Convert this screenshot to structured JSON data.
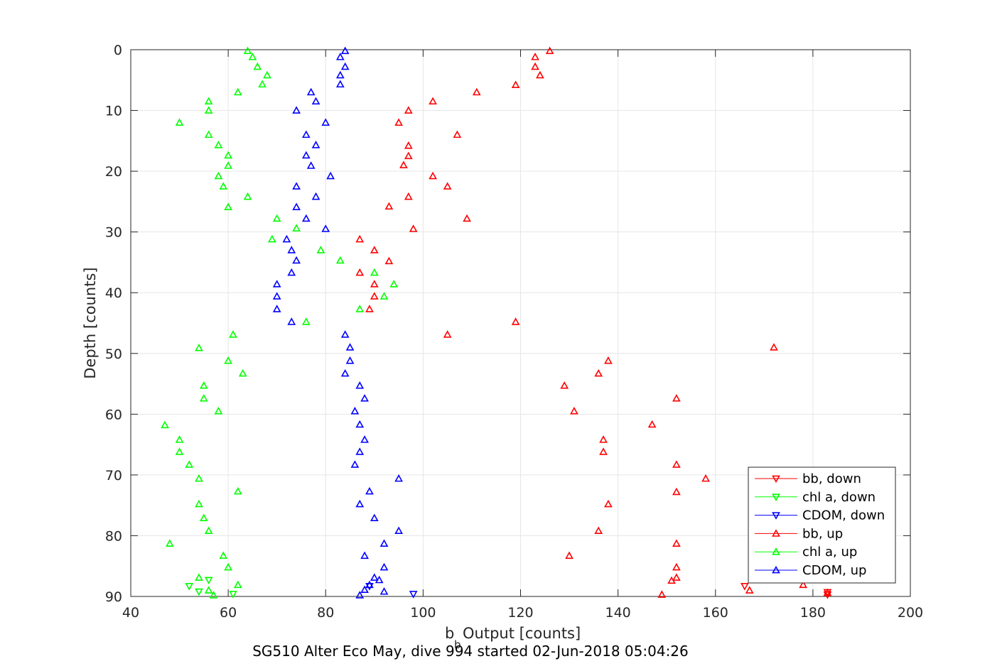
{
  "chart_data": {
    "type": "scatter",
    "title": "SG510 Alter Eco May, dive 994 started 02-Jun-2018 05:04:26",
    "xlabel_main": "b",
    "xlabel_sub": "b",
    "xlabel_rest": " Output [counts]",
    "ylabel": "Depth [counts]",
    "xlim": [
      40,
      200
    ],
    "ylim": [
      90,
      0
    ],
    "xticks": [
      "40",
      "60",
      "80",
      "100",
      "120",
      "140",
      "160",
      "180",
      "200"
    ],
    "yticks": [
      "0",
      "10",
      "20",
      "30",
      "40",
      "50",
      "60",
      "70",
      "80",
      "90"
    ],
    "grid": true,
    "legend_position": "bottom-right",
    "colors": {
      "bb": "#ff0000",
      "chl": "#00ff00",
      "cdom": "#0000ff",
      "axis": "#262626",
      "grid": "#e6e6e6"
    },
    "series": [
      {
        "name": "bb, down",
        "marker": "down",
        "color": "#ff0000",
        "points": [
          [
            166,
            88.3
          ],
          [
            183,
            89.3
          ],
          [
            183,
            89.7
          ]
        ]
      },
      {
        "name": "chl a, down",
        "marker": "down",
        "color": "#00ff00",
        "points": [
          [
            52,
            88.3
          ],
          [
            54,
            89.2
          ],
          [
            56,
            87.3
          ],
          [
            61,
            89.6
          ]
        ]
      },
      {
        "name": "CDOM, down",
        "marker": "down",
        "color": "#0000ff",
        "points": [
          [
            98,
            89.6
          ],
          [
            89,
            88.3
          ]
        ]
      },
      {
        "name": "bb, up",
        "marker": "up",
        "color": "#ff0000",
        "points": [
          [
            126,
            0.2
          ],
          [
            123,
            1.2
          ],
          [
            123,
            2.8
          ],
          [
            124,
            4.2
          ],
          [
            119,
            5.8
          ],
          [
            111,
            7.0
          ],
          [
            102,
            8.5
          ],
          [
            97,
            10.0
          ],
          [
            95,
            12.0
          ],
          [
            107,
            14.0
          ],
          [
            97,
            15.8
          ],
          [
            97,
            17.5
          ],
          [
            96,
            19.0
          ],
          [
            102,
            20.8
          ],
          [
            105,
            22.5
          ],
          [
            97,
            24.2
          ],
          [
            93,
            25.8
          ],
          [
            109,
            27.8
          ],
          [
            98,
            29.5
          ],
          [
            87,
            31.2
          ],
          [
            90,
            33.0
          ],
          [
            93,
            34.8
          ],
          [
            87,
            36.7
          ],
          [
            90,
            38.6
          ],
          [
            90,
            40.6
          ],
          [
            89,
            42.7
          ],
          [
            119,
            44.8
          ],
          [
            105,
            46.9
          ],
          [
            172,
            49.0
          ],
          [
            138,
            51.2
          ],
          [
            136,
            53.3
          ],
          [
            129,
            55.3
          ],
          [
            152,
            57.4
          ],
          [
            131,
            59.5
          ],
          [
            147,
            61.7
          ],
          [
            137,
            64.2
          ],
          [
            137,
            66.2
          ],
          [
            152,
            68.3
          ],
          [
            158,
            70.6
          ],
          [
            152,
            72.8
          ],
          [
            138,
            74.8
          ],
          [
            136,
            79.2
          ],
          [
            152,
            81.3
          ],
          [
            130,
            83.3
          ],
          [
            152,
            85.2
          ],
          [
            152,
            86.9
          ],
          [
            151,
            87.4
          ],
          [
            178,
            88.1
          ],
          [
            167,
            89.0
          ],
          [
            149,
            89.7
          ],
          [
            183,
            89.4
          ]
        ]
      },
      {
        "name": "chl a, up",
        "marker": "up",
        "color": "#00ff00",
        "points": [
          [
            64,
            0.2
          ],
          [
            65,
            1.2
          ],
          [
            66,
            2.8
          ],
          [
            68,
            4.2
          ],
          [
            67,
            5.7
          ],
          [
            62,
            7.0
          ],
          [
            56,
            8.5
          ],
          [
            56,
            10.0
          ],
          [
            50,
            12.0
          ],
          [
            56,
            14.0
          ],
          [
            58,
            15.7
          ],
          [
            60,
            17.4
          ],
          [
            60,
            19.1
          ],
          [
            58,
            20.8
          ],
          [
            59,
            22.5
          ],
          [
            64,
            24.2
          ],
          [
            60,
            25.9
          ],
          [
            70,
            27.8
          ],
          [
            74,
            29.4
          ],
          [
            69,
            31.2
          ],
          [
            79,
            33.0
          ],
          [
            83,
            34.7
          ],
          [
            90,
            36.7
          ],
          [
            94,
            38.6
          ],
          [
            92,
            40.6
          ],
          [
            87,
            42.7
          ],
          [
            76,
            44.8
          ],
          [
            61,
            46.9
          ],
          [
            54,
            49.1
          ],
          [
            60,
            51.2
          ],
          [
            63,
            53.3
          ],
          [
            55,
            55.3
          ],
          [
            55,
            57.4
          ],
          [
            58,
            59.5
          ],
          [
            47,
            61.8
          ],
          [
            50,
            64.2
          ],
          [
            50,
            66.2
          ],
          [
            52,
            68.3
          ],
          [
            54,
            70.6
          ],
          [
            62,
            72.7
          ],
          [
            54,
            74.8
          ],
          [
            55,
            77.1
          ],
          [
            56,
            79.2
          ],
          [
            48,
            81.3
          ],
          [
            59,
            83.3
          ],
          [
            60,
            85.2
          ],
          [
            54,
            86.9
          ],
          [
            62,
            88.1
          ],
          [
            56,
            89.0
          ],
          [
            57,
            89.8
          ]
        ]
      },
      {
        "name": "CDOM, up",
        "marker": "up",
        "color": "#0000ff",
        "points": [
          [
            84,
            0.2
          ],
          [
            83,
            1.2
          ],
          [
            84,
            2.8
          ],
          [
            83,
            4.2
          ],
          [
            83,
            5.7
          ],
          [
            77,
            7.0
          ],
          [
            78,
            8.5
          ],
          [
            74,
            10.0
          ],
          [
            80,
            12.0
          ],
          [
            76,
            14.0
          ],
          [
            78,
            15.7
          ],
          [
            76,
            17.4
          ],
          [
            77,
            19.1
          ],
          [
            81,
            20.8
          ],
          [
            74,
            22.5
          ],
          [
            78,
            24.2
          ],
          [
            74,
            25.9
          ],
          [
            76,
            27.8
          ],
          [
            80,
            29.5
          ],
          [
            72,
            31.2
          ],
          [
            73,
            33.0
          ],
          [
            74,
            34.7
          ],
          [
            73,
            36.7
          ],
          [
            70,
            38.6
          ],
          [
            70,
            40.6
          ],
          [
            70,
            42.7
          ],
          [
            73,
            44.8
          ],
          [
            84,
            46.9
          ],
          [
            85,
            49.0
          ],
          [
            85,
            51.2
          ],
          [
            84,
            53.3
          ],
          [
            87,
            55.3
          ],
          [
            88,
            57.4
          ],
          [
            86,
            59.5
          ],
          [
            87,
            61.7
          ],
          [
            88,
            64.2
          ],
          [
            87,
            66.2
          ],
          [
            86,
            68.3
          ],
          [
            95,
            70.6
          ],
          [
            89,
            72.7
          ],
          [
            87,
            74.8
          ],
          [
            90,
            77.1
          ],
          [
            95,
            79.2
          ],
          [
            92,
            81.3
          ],
          [
            88,
            83.3
          ],
          [
            92,
            85.2
          ],
          [
            90,
            86.9
          ],
          [
            91,
            87.3
          ],
          [
            89,
            88.1
          ],
          [
            88,
            88.9
          ],
          [
            92,
            89.2
          ],
          [
            87,
            89.8
          ]
        ]
      }
    ]
  }
}
